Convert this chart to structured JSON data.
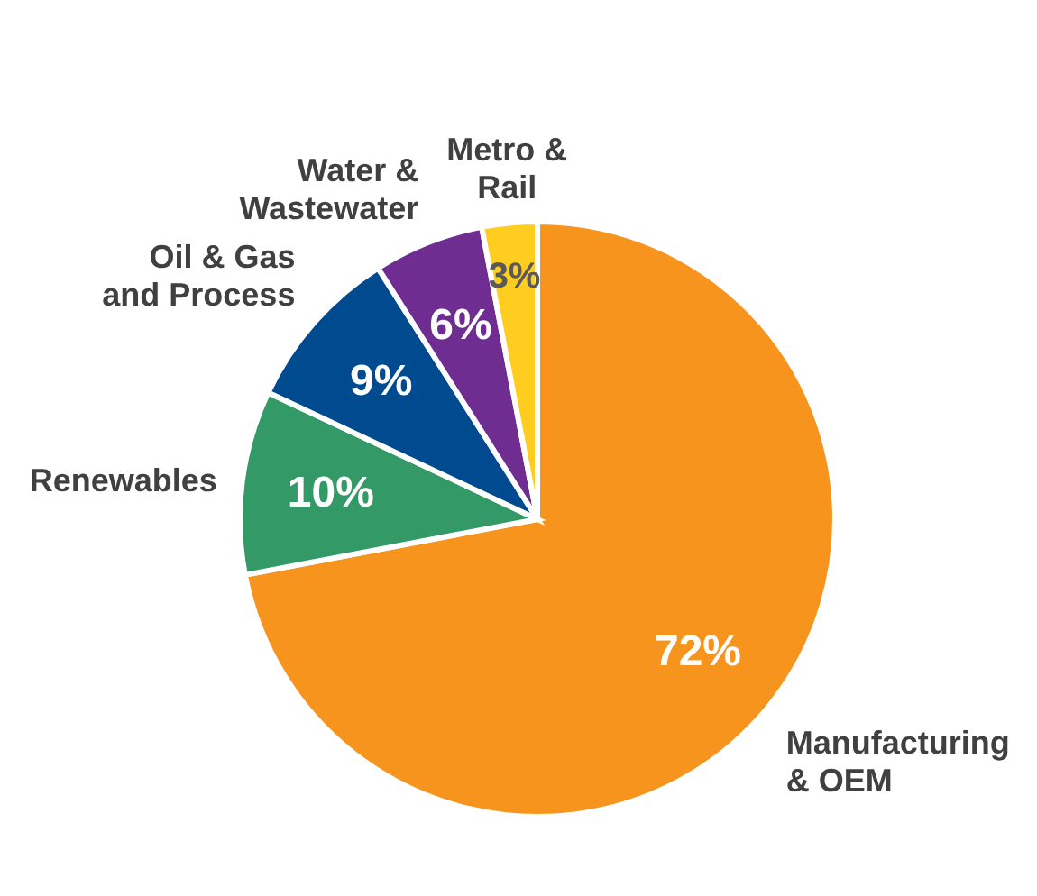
{
  "chart_data": {
    "type": "pie",
    "categories": [
      "Manufacturing & OEM",
      "Renewables",
      "Oil & Gas and Process",
      "Water & Wastewater",
      "Metro & Rail"
    ],
    "values": [
      72,
      10,
      9,
      6,
      3
    ],
    "colors": [
      "#f7941d",
      "#339966",
      "#004a8f",
      "#6f2c91",
      "#ffcd1f"
    ],
    "value_labels": [
      "72%",
      "10%",
      "9%",
      "6%",
      "3%"
    ],
    "legend": false
  }
}
